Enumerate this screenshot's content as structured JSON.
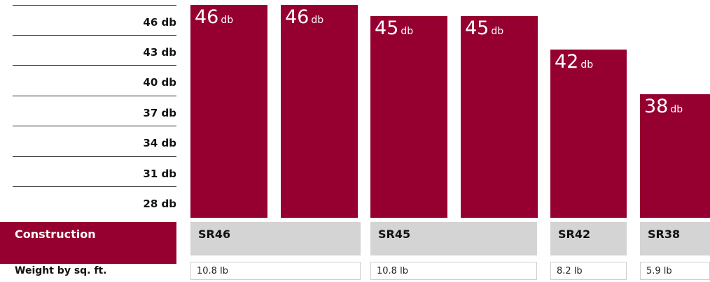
{
  "chart_data": {
    "type": "bar",
    "categories": [
      "SR46",
      "SR46",
      "SR45",
      "SR45",
      "SR42",
      "SR38"
    ],
    "values": [
      46,
      46,
      45,
      45,
      42,
      38
    ],
    "value_unit": "db",
    "title": "",
    "xlabel": "",
    "ylabel": "",
    "ylim": [
      28,
      46
    ],
    "y_tick_labels": [
      "46 db",
      "43 db",
      "40 db",
      "37 db",
      "34 db",
      "31 db",
      "28 db"
    ],
    "grid": false,
    "legend": "none",
    "bar_color": "#960030"
  },
  "table": {
    "construction_label": "Construction",
    "weight_label": "Weight by sq. ft.",
    "columns": [
      {
        "construction": "SR46",
        "weight": "10.8 lb"
      },
      {
        "construction": "SR45",
        "weight": "10.8 lb"
      },
      {
        "construction": "SR42",
        "weight": "8.2 lb"
      },
      {
        "construction": "SR38",
        "weight": "5.9 lb"
      }
    ]
  },
  "colors": {
    "accent": "#960030",
    "cell_gray": "#d4d4d4"
  }
}
